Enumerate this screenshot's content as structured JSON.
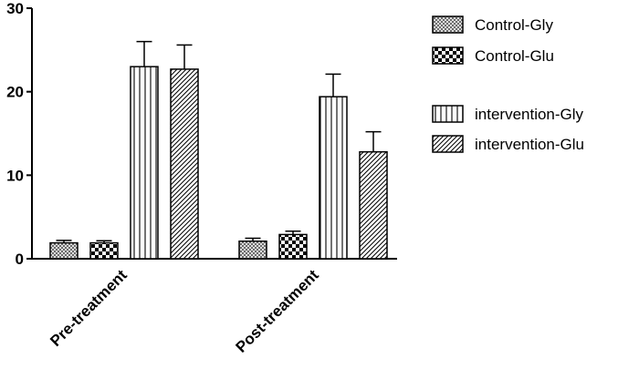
{
  "chart_data": {
    "type": "bar",
    "title": "",
    "xlabel": "",
    "ylabel": "",
    "ylim": [
      0,
      30
    ],
    "yticks": [
      "0",
      "10",
      "20",
      "30"
    ],
    "categories": [
      "Pre-treatment",
      "Post-treatment"
    ],
    "legend_position": "top-right",
    "grid": false,
    "series": [
      {
        "name": "Control-Gly",
        "pattern": "crosshatch-fine",
        "values": [
          1.9,
          2.1
        ],
        "errors": [
          0.3,
          0.35
        ]
      },
      {
        "name": "Control-Glu",
        "pattern": "checkerboard",
        "values": [
          1.9,
          2.9
        ],
        "errors": [
          0.25,
          0.4
        ]
      },
      {
        "name": "intervention-Gly",
        "pattern": "vertical-lines",
        "values": [
          23.0,
          19.4
        ],
        "errors": [
          3.0,
          2.7
        ]
      },
      {
        "name": "intervention-Glu",
        "pattern": "diagonal-lines",
        "values": [
          22.7,
          12.8
        ],
        "errors": [
          2.9,
          2.4
        ]
      }
    ]
  }
}
